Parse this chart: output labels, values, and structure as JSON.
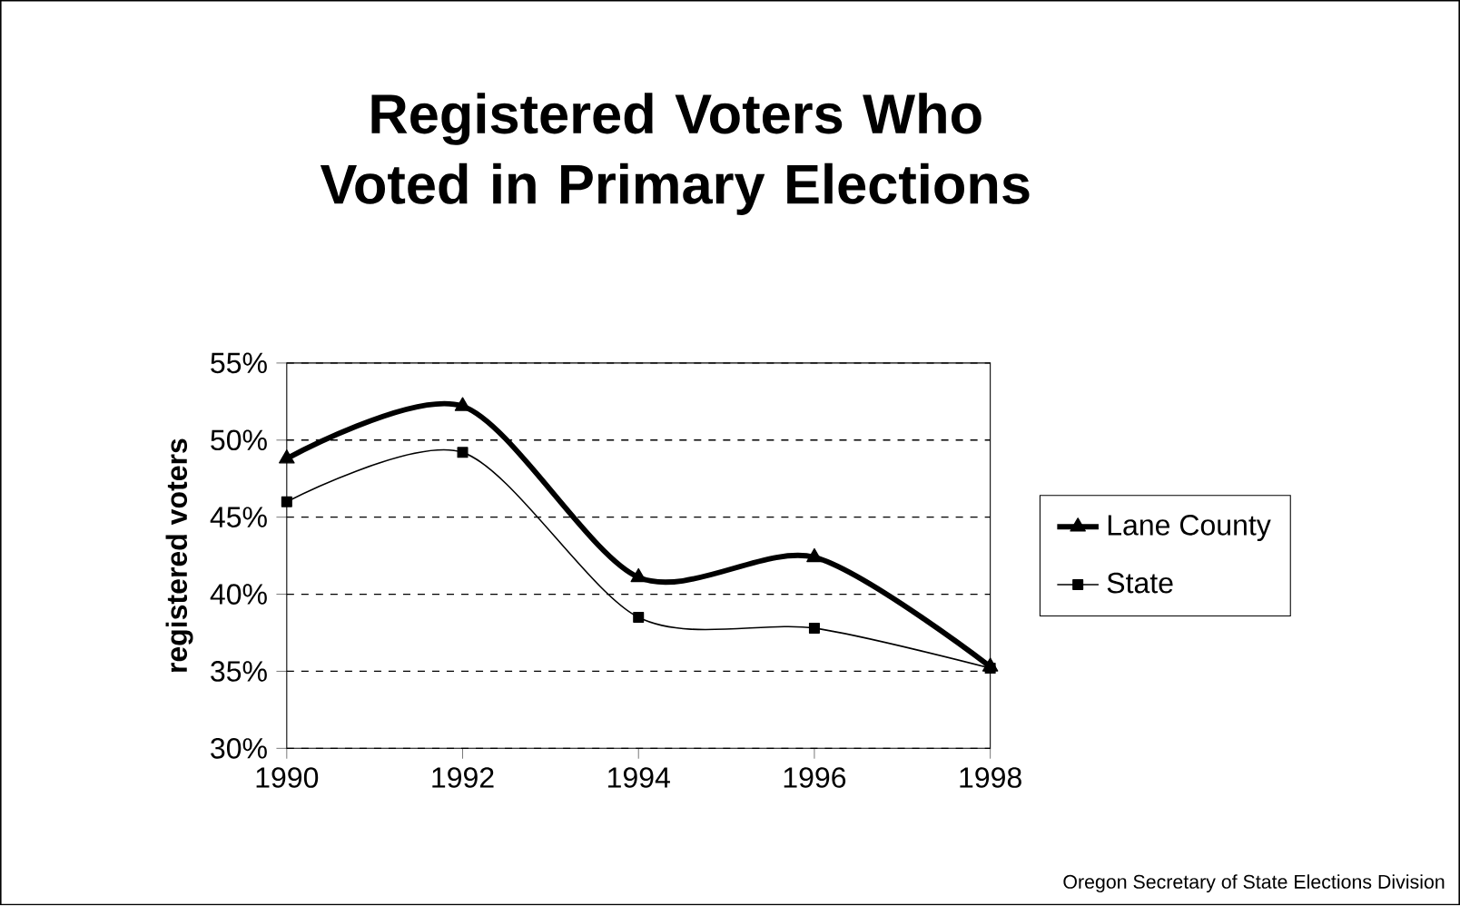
{
  "chart_data": {
    "type": "line",
    "title": "Registered Voters Who Voted in Primary Elections",
    "ylabel": "registered voters",
    "x": [
      1990,
      1992,
      1994,
      1996,
      1998
    ],
    "series": [
      {
        "name": "Lane County",
        "color": "#000000",
        "marker": "triangle",
        "values": [
          48.8,
          52.2,
          41.1,
          42.4,
          35.3
        ]
      },
      {
        "name": "State",
        "color": "#000000",
        "marker": "square",
        "values": [
          46.0,
          49.2,
          38.5,
          37.8,
          35.2
        ]
      }
    ],
    "xlim": [
      1990,
      1998
    ],
    "xticks": [
      1990,
      1992,
      1994,
      1996,
      1998
    ],
    "ylim": [
      30,
      55
    ],
    "yticks": [
      {
        "value": 30,
        "label": "30%"
      },
      {
        "value": 35,
        "label": "35%"
      },
      {
        "value": 40,
        "label": "40%"
      },
      {
        "value": 45,
        "label": "45%"
      },
      {
        "value": 50,
        "label": "50%"
      },
      {
        "value": 55,
        "label": "55%"
      }
    ],
    "grid": "y",
    "legend": "right",
    "line_style": "solid",
    "annotations": [
      "Oregon Secretary of State Elections Division"
    ]
  }
}
